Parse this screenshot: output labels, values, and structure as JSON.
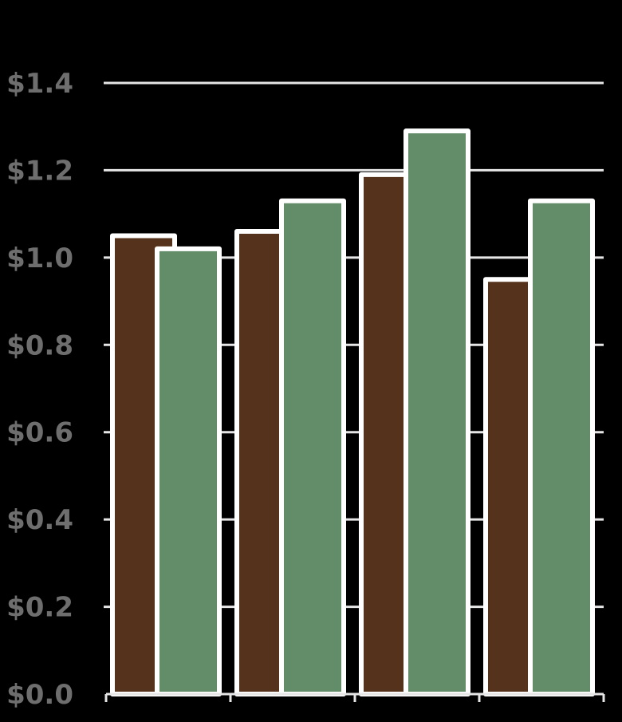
{
  "chart_data": {
    "type": "bar",
    "title": "",
    "xlabel": "",
    "ylabel": "",
    "categories": [
      "",
      "",
      "",
      ""
    ],
    "series": [
      {
        "values": [
          1.05,
          1.06,
          1.19,
          0.95
        ]
      },
      {
        "values": [
          1.02,
          1.13,
          1.29,
          1.13
        ]
      }
    ],
    "ylim": [
      0,
      1.4
    ],
    "y_ticks": [
      0,
      0.2,
      0.4,
      0.6,
      0.8,
      1.0,
      1.2,
      1.4
    ],
    "y_tick_labels": [
      "$0.0",
      "$0.2",
      "$0.4",
      "$0.6",
      "$0.8",
      "$1.0",
      "$1.2",
      "$1.4"
    ],
    "grid": true,
    "legend": "none",
    "colors": {
      "background": "#000000",
      "series": [
        "#54321b",
        "#638c68"
      ],
      "bar_outline": "#ffffff",
      "grid": "#e6e6e6",
      "tick_label": "#6e6e6e"
    }
  }
}
